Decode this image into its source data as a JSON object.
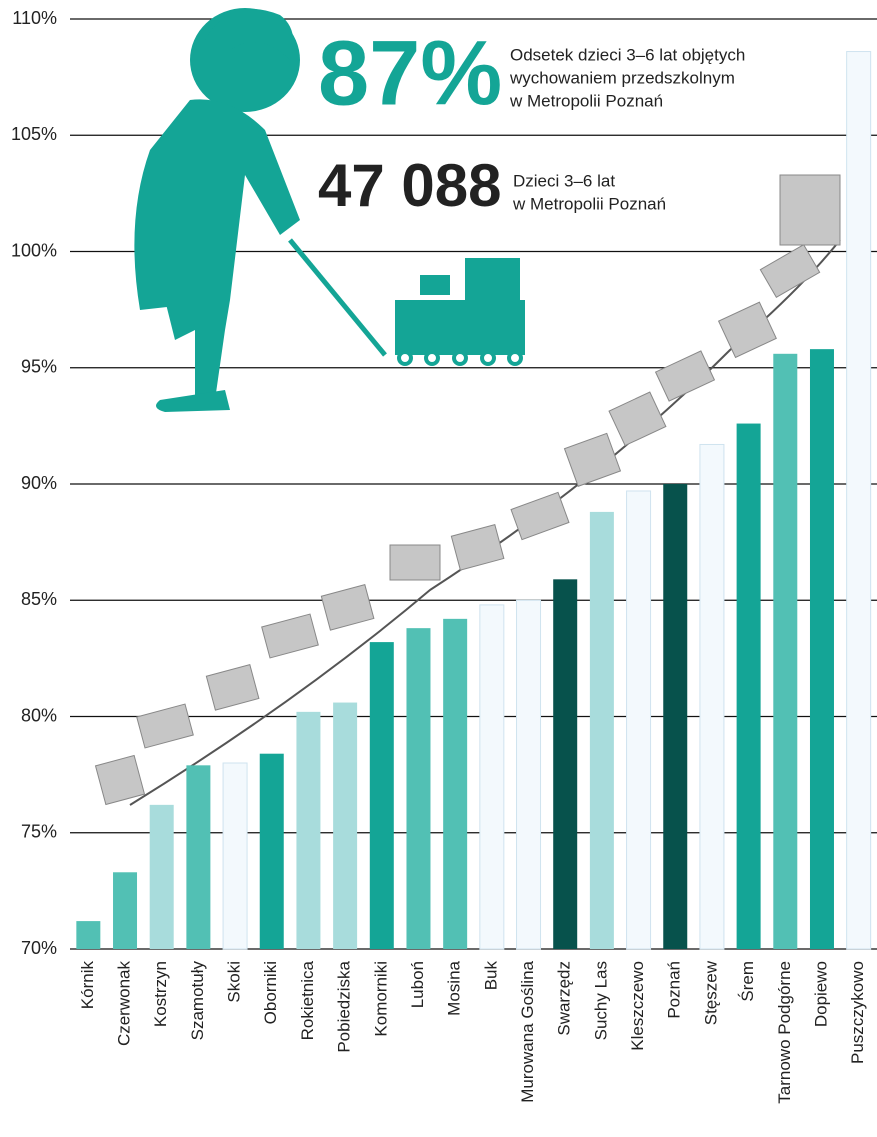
{
  "chart_data": {
    "type": "bar",
    "categories": [
      "Kórnik",
      "Czerwonak",
      "Kostrzyn",
      "Szamotuły",
      "Skoki",
      "Oborniki",
      "Rokietnica",
      "Pobiedziska",
      "Komorniki",
      "Luboń",
      "Mosina",
      "Buk",
      "Murowana Goślina",
      "Swarzędz",
      "Suchy Las",
      "Kleszczewo",
      "Poznań",
      "Stęszew",
      "Śrem",
      "Tarnowo Podgórne",
      "Dopiewo",
      "Puszczykowo"
    ],
    "values": [
      71.2,
      73.3,
      76.2,
      77.9,
      78.0,
      78.4,
      80.2,
      80.6,
      83.2,
      83.8,
      84.2,
      84.8,
      85.0,
      85.9,
      88.8,
      89.7,
      90.0,
      91.7,
      92.6,
      95.6,
      95.8,
      108.6
    ],
    "colors": [
      "#52c0b4",
      "#52c0b4",
      "#a8dcdc",
      "#52c0b4",
      "#f3f9fd",
      "#14a596",
      "#a8dcdc",
      "#a8dcdc",
      "#14a596",
      "#52c0b4",
      "#52c0b4",
      "#f3f9fd",
      "#f3f9fd",
      "#07524c",
      "#a8dcdc",
      "#f3f9fd",
      "#07524c",
      "#f3f9fd",
      "#14a596",
      "#52c0b4",
      "#14a596",
      "#f3f9fd"
    ],
    "ylim": [
      70,
      110
    ],
    "yticks": [
      {
        "value": 70,
        "label": "70%"
      },
      {
        "value": 75,
        "label": "75%"
      },
      {
        "value": 80,
        "label": "80%"
      },
      {
        "value": 85,
        "label": "85%"
      },
      {
        "value": 90,
        "label": "90%"
      },
      {
        "value": 95,
        "label": "95%"
      },
      {
        "value": 100,
        "label": "100%"
      },
      {
        "value": 105,
        "label": "105%"
      },
      {
        "value": 110,
        "label": "110%"
      }
    ],
    "grid": true,
    "annotations": [
      {
        "headline": "87%",
        "lines": [
          "Odsetek dzieci 3–6 lat objętych",
          "wychowaniem przedszkolnym",
          "w Metropolii Poznań"
        ]
      },
      {
        "headline": "47 088",
        "lines": [
          "Dzieci 3–6 lat",
          "w Metropolii Poznań"
        ]
      }
    ]
  }
}
